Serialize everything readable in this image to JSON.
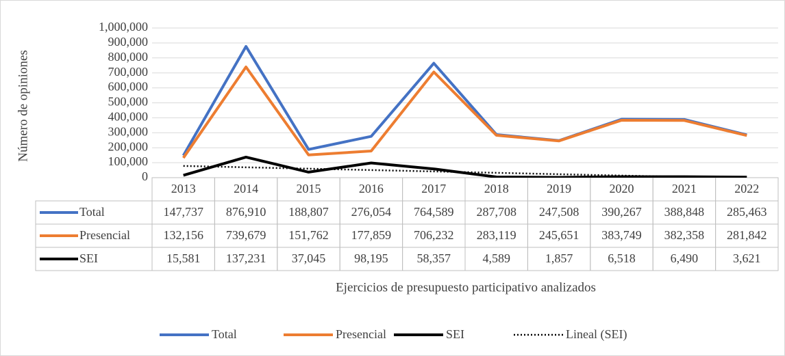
{
  "chart_data": {
    "type": "line",
    "x_label": "Ejercicios de presupuesto participativo analizados",
    "y_label": "Número de opiniones",
    "categories": [
      "2013",
      "2014",
      "2015",
      "2016",
      "2017",
      "2018",
      "2019",
      "2020",
      "2021",
      "2022"
    ],
    "series": [
      {
        "name": "Total",
        "color": "#4472c4",
        "values": [
          147737,
          876910,
          188807,
          276054,
          764589,
          287708,
          247508,
          390267,
          388848,
          285463
        ],
        "value_labels": [
          "147,737",
          "876,910",
          "188,807",
          "276,054",
          "764,589",
          "287,708",
          "247,508",
          "390,267",
          "388,848",
          "285,463"
        ]
      },
      {
        "name": "Presencial",
        "color": "#ed7d31",
        "values": [
          132156,
          739679,
          151762,
          177859,
          706232,
          283119,
          245651,
          383749,
          382358,
          281842
        ],
        "value_labels": [
          "132,156",
          "739,679",
          "151,762",
          "177,859",
          "706,232",
          "283,119",
          "245,651",
          "383,749",
          "382,358",
          "281,842"
        ]
      },
      {
        "name": "SEI",
        "color": "#000000",
        "values": [
          15581,
          137231,
          37045,
          98195,
          58357,
          4589,
          1857,
          6518,
          6490,
          3621
        ],
        "value_labels": [
          "15,581",
          "137,231",
          "37,045",
          "98,195",
          "58,357",
          "4,589",
          "1,857",
          "6,518",
          "6,490",
          "3,621"
        ]
      },
      {
        "name": "Lineal (SEI)",
        "color": "#000000",
        "style": "dotted",
        "values": [
          78355,
          69154,
          59952,
          50751,
          41549,
          32348,
          23146,
          13945,
          4743,
          -4458
        ]
      }
    ],
    "ylim": [
      0,
      1000000
    ],
    "yticks": [
      0,
      {
        "value": 100000,
        "label": "100,000"
      },
      {
        "value": 200000,
        "label": "200,000"
      },
      {
        "value": 300000,
        "label": "300,000"
      },
      {
        "value": 400000,
        "label": "400,000"
      },
      {
        "value": 500000,
        "label": "500,000"
      },
      {
        "value": 600000,
        "label": "600,000"
      },
      {
        "value": 700000,
        "label": "700,000"
      },
      {
        "value": 800000,
        "label": "800,000"
      },
      {
        "value": 900000,
        "label": "900,000"
      },
      {
        "value": 1000000,
        "label": "1,000,000"
      }
    ],
    "grid": true,
    "legend": "bottom",
    "data_table": true
  }
}
